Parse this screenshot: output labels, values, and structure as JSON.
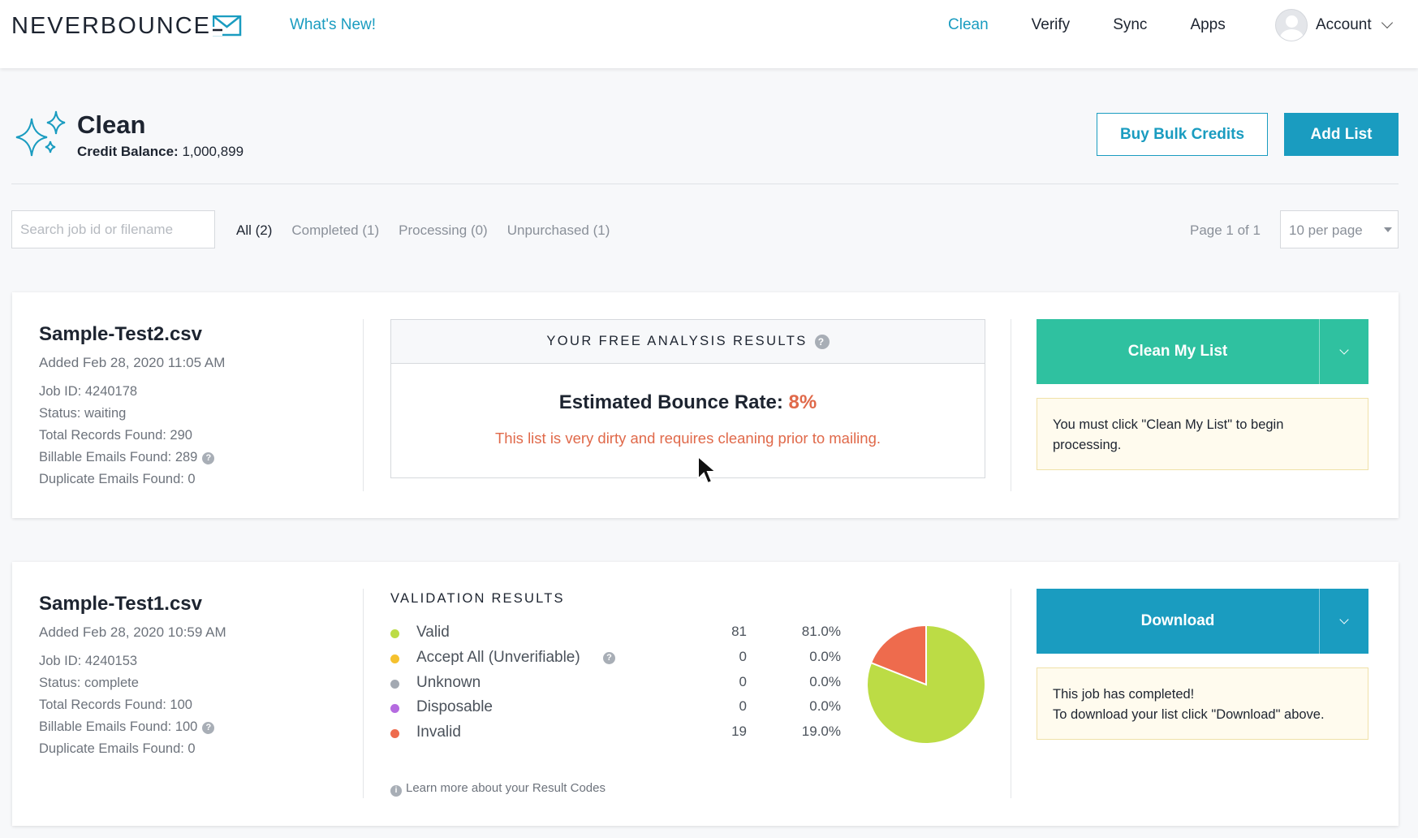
{
  "nav": {
    "logo": "NEVERBOUNCE",
    "whats_new": "What's New!",
    "links": [
      "Clean",
      "Verify",
      "Sync",
      "Apps"
    ],
    "active": "Clean",
    "account": "Account"
  },
  "header": {
    "title": "Clean",
    "credit_label": "Credit Balance:",
    "credit_value": "1,000,899",
    "buy_credits": "Buy Bulk Credits",
    "add_list": "Add List"
  },
  "filters": {
    "search_placeholder": "Search job id or filename",
    "tabs": [
      "All (2)",
      "Completed (1)",
      "Processing (0)",
      "Unpurchased (1)"
    ],
    "active_tab": "All (2)",
    "page_info": "Page 1 of 1",
    "per_page": "10 per page"
  },
  "jobs": [
    {
      "filename": "Sample-Test2.csv",
      "added": "Added Feb 28, 2020 11:05 AM",
      "job_id": "Job ID: 4240178",
      "status": "Status: waiting",
      "total_records": "Total Records Found: 290",
      "billable": "Billable Emails Found: 289",
      "duplicates": "Duplicate Emails Found: 0",
      "analysis_title": "YOUR FREE ANALYSIS RESULTS",
      "bounce_label": "Estimated Bounce Rate:",
      "bounce_value": "8%",
      "bounce_message": "This list is very dirty and requires cleaning prior to mailing.",
      "action": "Clean My List",
      "notice": "You must click \"Clean My List\" to begin processing."
    },
    {
      "filename": "Sample-Test1.csv",
      "added": "Added Feb 28, 2020 10:59 AM",
      "job_id": "Job ID: 4240153",
      "status": "Status: complete",
      "total_records": "Total Records Found: 100",
      "billable": "Billable Emails Found: 100",
      "duplicates": "Duplicate Emails Found: 0",
      "results_title": "VALIDATION RESULTS",
      "learn_more": "Learn more about your Result Codes",
      "action": "Download",
      "notice_line1": "This job has completed!",
      "notice_line2": "To download your list click \"Download\" above."
    }
  ],
  "chart_data": {
    "type": "pie",
    "categories": [
      "Valid",
      "Accept All (Unverifiable)",
      "Unknown",
      "Disposable",
      "Invalid"
    ],
    "values": [
      81,
      0,
      0,
      0,
      19
    ],
    "percents": [
      "81.0%",
      "0.0%",
      "0.0%",
      "0.0%",
      "19.0%"
    ],
    "colors": [
      "#bcdc45",
      "#f5c12e",
      "#a3a9b2",
      "#b56be0",
      "#ee6b4d"
    ]
  },
  "colors": {
    "accent": "#1a9cc0",
    "green": "#2fc1a0",
    "warning": "#e0694a"
  }
}
